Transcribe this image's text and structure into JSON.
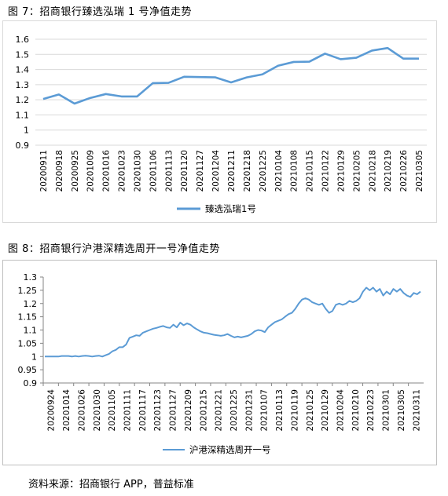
{
  "figure1": {
    "title": "图 7：招商银行臻选泓瑞 1 号净值走势"
  },
  "figure2": {
    "title": "图 8：招商银行沪港深精选周开一号净值走势"
  },
  "source": "资料来源：招商银行 APP，普益标准",
  "chart_data": [
    {
      "type": "line",
      "title": "",
      "xlabel": "",
      "ylabel": "",
      "ylim": [
        0.9,
        1.6
      ],
      "yticks": [
        "0.9",
        "1",
        "1.1",
        "1.2",
        "1.3",
        "1.4",
        "1.5",
        "1.6"
      ],
      "grid": "horizontal",
      "legend": "bottom-center",
      "color": "#5b9bd5",
      "categories": [
        "20200911",
        "20200918",
        "20200925",
        "20201009",
        "20201016",
        "20201023",
        "20201030",
        "20201106",
        "20201113",
        "20201120",
        "20201127",
        "20201204",
        "20201211",
        "20201218",
        "20201225",
        "20210104",
        "20210108",
        "20210115",
        "20210122",
        "20210129",
        "20210205",
        "20210218",
        "20210219",
        "20210226",
        "20210305"
      ],
      "series": [
        {
          "name": "臻选泓瑞1号",
          "values": [
            1.205,
            1.235,
            1.175,
            1.212,
            1.238,
            1.222,
            1.222,
            1.31,
            1.312,
            1.352,
            1.35,
            1.348,
            1.315,
            1.348,
            1.368,
            1.425,
            1.45,
            1.452,
            1.505,
            1.468,
            1.478,
            1.525,
            1.542,
            1.472,
            1.472
          ]
        }
      ]
    },
    {
      "type": "line",
      "title": "",
      "xlabel": "",
      "ylabel": "",
      "ylim": [
        0.9,
        1.3
      ],
      "yticks": [
        "0.9",
        "0.95",
        "1",
        "1.05",
        "1.1",
        "1.15",
        "1.2",
        "1.25",
        "1.3"
      ],
      "grid": "none",
      "legend": "bottom-center",
      "color": "#5b9bd5",
      "xtick_labels": [
        "20200924",
        "20201014",
        "20201026",
        "20201030",
        "20201105",
        "20201111",
        "20201117",
        "20201123",
        "20201127",
        "20201209",
        "20201215",
        "20201221",
        "20201225",
        "20201231",
        "20210107",
        "20210113",
        "20210119",
        "20210125",
        "20210129",
        "20210204",
        "20210210",
        "20210223",
        "20210301",
        "20210305",
        "20210311"
      ],
      "series": [
        {
          "name": "沪港深精选周开一号",
          "values": [
            1.0,
            1.0,
            1.0,
            1.0,
            1.0,
            1.002,
            1.002,
            1.002,
            1.0,
            1.002,
            1.0,
            1.002,
            1.003,
            1.002,
            1.0,
            1.002,
            1.003,
            1.0,
            1.005,
            1.01,
            1.02,
            1.025,
            1.035,
            1.035,
            1.045,
            1.07,
            1.075,
            1.08,
            1.078,
            1.09,
            1.095,
            1.1,
            1.105,
            1.108,
            1.112,
            1.115,
            1.11,
            1.108,
            1.12,
            1.11,
            1.128,
            1.118,
            1.125,
            1.12,
            1.11,
            1.102,
            1.095,
            1.09,
            1.088,
            1.085,
            1.082,
            1.08,
            1.078,
            1.08,
            1.085,
            1.078,
            1.072,
            1.075,
            1.072,
            1.075,
            1.078,
            1.085,
            1.095,
            1.1,
            1.098,
            1.092,
            1.11,
            1.12,
            1.13,
            1.135,
            1.14,
            1.15,
            1.16,
            1.165,
            1.18,
            1.2,
            1.215,
            1.22,
            1.215,
            1.205,
            1.2,
            1.195,
            1.2,
            1.18,
            1.165,
            1.172,
            1.195,
            1.2,
            1.195,
            1.2,
            1.21,
            1.205,
            1.21,
            1.22,
            1.245,
            1.26,
            1.25,
            1.26,
            1.245,
            1.255,
            1.23,
            1.245,
            1.235,
            1.255,
            1.245,
            1.255,
            1.24,
            1.23,
            1.225,
            1.24,
            1.235,
            1.245
          ]
        }
      ]
    }
  ]
}
